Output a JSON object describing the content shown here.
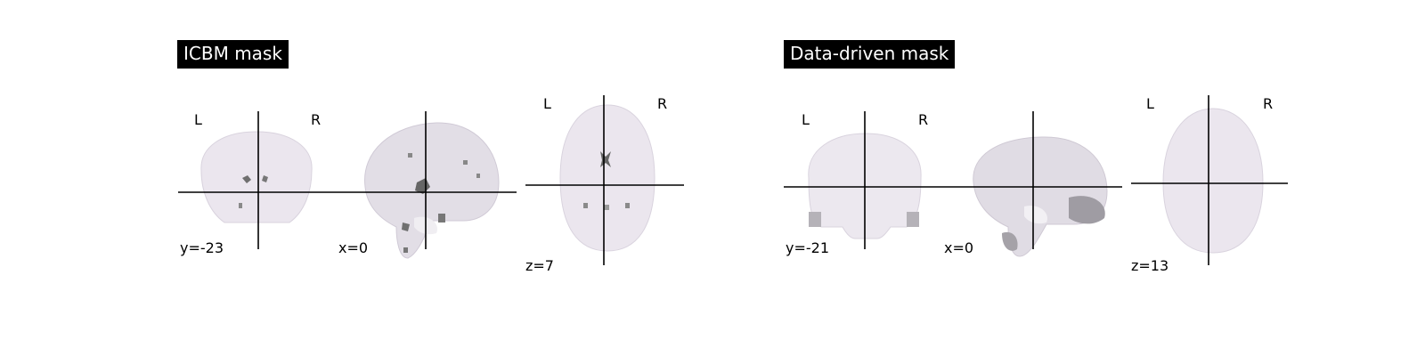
{
  "panels": [
    {
      "title": "ICBM mask",
      "side_left": "L",
      "side_right": "R",
      "coronal_coord": "y=-23",
      "sagittal_coord": "x=0",
      "axial_coord": "z=7"
    },
    {
      "title": "Data-driven mask",
      "side_left": "L",
      "side_right": "R",
      "coronal_coord": "y=-21",
      "sagittal_coord": "x=0",
      "axial_coord": "z=13"
    }
  ],
  "colors": {
    "brain": "#e8e4ec",
    "brain_edge": "#d8d2dc",
    "mask_dark": "#7a7a7a",
    "crosshair": "#000000"
  }
}
